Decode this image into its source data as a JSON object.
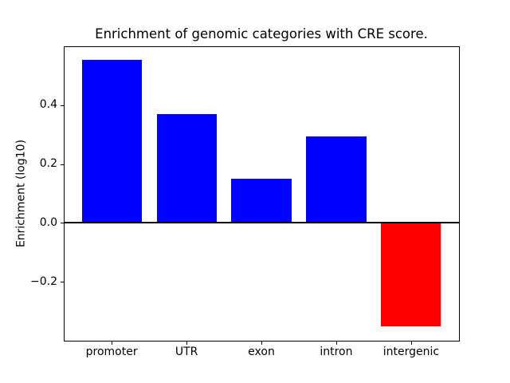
{
  "figure": {
    "background_color": "#ffffff",
    "frame_color": "#000000"
  },
  "chart_data": {
    "type": "bar",
    "title": "Enrichment of genomic categories with CRE score.",
    "xlabel": "",
    "ylabel": "Enrichment (log10)",
    "categories": [
      "promoter",
      "UTR",
      "exon",
      "intron",
      "intergenic"
    ],
    "values": [
      0.555,
      0.371,
      0.15,
      0.293,
      -0.352
    ],
    "bar_colors": [
      "#0000ff",
      "#0000ff",
      "#0000ff",
      "#0000ff",
      "#ff0000"
    ],
    "positive_color": "#0000ff",
    "negative_color": "#ff0000",
    "ylim": [
      -0.4,
      0.6
    ],
    "yticks": [
      0.4,
      0.2,
      0.0,
      -0.2
    ],
    "ytick_labels": [
      "0.4",
      "0.2",
      "0.0",
      "−0.2"
    ],
    "zero_line": true,
    "zero_line_color": "#000000",
    "grid": false,
    "legend": null
  }
}
